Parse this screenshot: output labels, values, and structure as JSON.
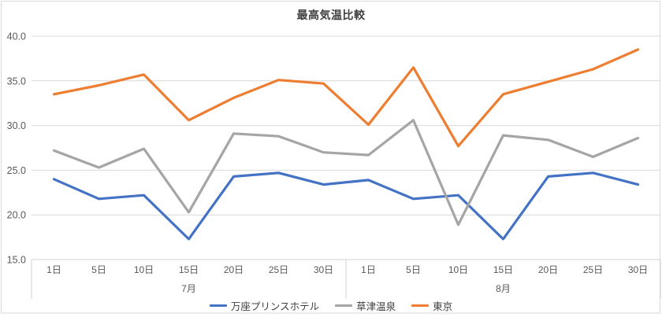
{
  "chart_data": {
    "type": "line",
    "title": "最高気温比較",
    "x_categories": [
      "1日",
      "5日",
      "10日",
      "15日",
      "20日",
      "25日",
      "30日",
      "1日",
      "5日",
      "10日",
      "15日",
      "20日",
      "25日",
      "30日"
    ],
    "month_groups": [
      {
        "label": "7月",
        "count": 7
      },
      {
        "label": "8月",
        "count": 7
      }
    ],
    "ylim": [
      15,
      40
    ],
    "ytick_step": 5,
    "ytick_labels": [
      "15.0",
      "20.0",
      "25.0",
      "30.0",
      "35.0",
      "40.0"
    ],
    "ytick_values": [
      15,
      20,
      25,
      30,
      35,
      40
    ],
    "grid": true,
    "legend_position": "bottom",
    "series": [
      {
        "name": "万座プリンスホテル",
        "slug": "manza-prince-hotel",
        "color": "#4472C4",
        "values": [
          24.0,
          21.8,
          22.2,
          17.3,
          24.3,
          24.7,
          23.4,
          23.9,
          21.8,
          22.2,
          17.3,
          24.3,
          24.7,
          23.4
        ]
      },
      {
        "name": "草津温泉",
        "slug": "kusatsu-onsen",
        "color": "#A5A5A5",
        "values": [
          27.2,
          25.3,
          27.4,
          20.3,
          29.1,
          28.8,
          27.0,
          26.7,
          30.6,
          18.9,
          28.9,
          28.4,
          26.5,
          28.6
        ]
      },
      {
        "name": "東京",
        "slug": "tokyo",
        "color": "#ED7D31",
        "values": [
          33.5,
          34.5,
          35.7,
          30.6,
          33.1,
          35.1,
          34.7,
          30.1,
          36.5,
          27.7,
          33.5,
          34.9,
          36.3,
          38.5
        ]
      }
    ]
  },
  "colors": {
    "gridline": "#D9D9D9",
    "frame_border": "#D9D9D9",
    "axis_line": "#D0D0D0",
    "tick_text": "#595959",
    "title_text": "#404040"
  }
}
